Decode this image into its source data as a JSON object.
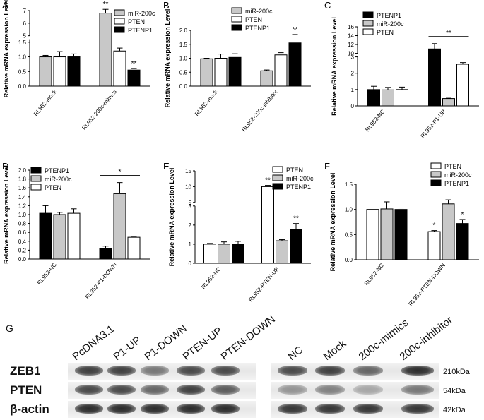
{
  "colors": {
    "black": "#000000",
    "gray": "#c8c8c8",
    "white": "#ffffff"
  },
  "chart_data": [
    {
      "panel": "A",
      "type": "bar",
      "ylabel": "Relative mRNA expression Level",
      "categories": [
        "RL952-mock",
        "RL952-200c-mimics"
      ],
      "series": [
        {
          "name": "miR-200c",
          "color": "#c8c8c8",
          "values": [
            1.0,
            6.8
          ],
          "errors": [
            0.05,
            0.3
          ]
        },
        {
          "name": "PTEN",
          "color": "#ffffff",
          "values": [
            1.0,
            1.2
          ],
          "errors": [
            0.18,
            0.1
          ]
        },
        {
          "name": "PTENP1",
          "color": "#000000",
          "values": [
            1.0,
            0.55
          ],
          "errors": [
            0.1,
            0.05
          ]
        }
      ],
      "annotations": [
        {
          "group": 1,
          "series": 0,
          "text": "**"
        },
        {
          "group": 1,
          "series": 2,
          "text": "**"
        }
      ],
      "legend": "top-right",
      "axis_break": {
        "from": 1.6,
        "to": 5,
        "upper_max": 7
      },
      "lower_ticks": [
        "0.0",
        "0.5",
        "1.0",
        "1.5"
      ],
      "upper_ticks": [
        "5",
        "6",
        "7"
      ]
    },
    {
      "panel": "B",
      "type": "bar",
      "ylabel": "Relative mRNA expression Level",
      "categories": [
        "RL952-mock",
        "RL952-200c-inhibitor"
      ],
      "series": [
        {
          "name": "miR-200c",
          "color": "#c8c8c8",
          "values": [
            0.98,
            0.55
          ],
          "errors": [
            0.02,
            0.03
          ]
        },
        {
          "name": "PTEN",
          "color": "#ffffff",
          "values": [
            1.0,
            1.12
          ],
          "errors": [
            0.15,
            0.08
          ]
        },
        {
          "name": "PTENP1",
          "color": "#000000",
          "values": [
            1.03,
            1.55
          ],
          "errors": [
            0.13,
            0.3
          ]
        }
      ],
      "annotations": [
        {
          "group": 1,
          "series": 2,
          "text": "**"
        }
      ],
      "legend": "top-right",
      "ylim": [
        0,
        2.0
      ],
      "ticks": [
        "0.0",
        "0.5",
        "1.0",
        "1.5",
        "2.0"
      ]
    },
    {
      "panel": "C",
      "type": "bar",
      "ylabel": "Relative mRNA expression Level",
      "categories": [
        "RL952-NC",
        "RL952-P1-UP"
      ],
      "series": [
        {
          "name": "PTENP1",
          "color": "#000000",
          "values": [
            1.0,
            11.0
          ],
          "errors": [
            0.2,
            1.2
          ]
        },
        {
          "name": "miR-200c",
          "color": "#c8c8c8",
          "values": [
            0.98,
            0.45
          ],
          "errors": [
            0.15,
            0.02
          ]
        },
        {
          "name": "PTEN",
          "color": "#ffffff",
          "values": [
            1.0,
            2.55
          ],
          "errors": [
            0.15,
            0.1
          ]
        }
      ],
      "annotations": [
        {
          "bracket": [
            0,
            2
          ],
          "group": 1,
          "text": "**"
        }
      ],
      "legend": "top-left",
      "axis_break": {
        "from": 3,
        "to": 10,
        "upper_max": 16
      },
      "lower_ticks": [
        "0",
        "1",
        "2",
        "3"
      ],
      "upper_ticks": [
        "10",
        "12",
        "14",
        "16"
      ]
    },
    {
      "panel": "D",
      "type": "bar",
      "ylabel": "Relative mRNA expression Level",
      "categories": [
        "RL952-NC",
        "RL952-P1-DOWN"
      ],
      "series": [
        {
          "name": "PTENP1",
          "color": "#000000",
          "values": [
            1.03,
            0.24
          ],
          "errors": [
            0.17,
            0.05
          ]
        },
        {
          "name": "miR-200c",
          "color": "#c8c8c8",
          "values": [
            1.0,
            1.47
          ],
          "errors": [
            0.05,
            0.25
          ]
        },
        {
          "name": "PTEN",
          "color": "#ffffff",
          "values": [
            1.03,
            0.49
          ],
          "errors": [
            0.1,
            0.02
          ]
        }
      ],
      "annotations": [
        {
          "bracket": [
            0,
            2
          ],
          "group": 1,
          "text": "*"
        }
      ],
      "legend": "top-left",
      "ylim": [
        0,
        2.0
      ],
      "ticks": [
        "0.0",
        "0.2",
        "0.4",
        "0.6",
        "0.8",
        "1.0",
        "1.2",
        "1.4",
        "1.6",
        "1.8",
        "2.0"
      ]
    },
    {
      "panel": "E",
      "type": "bar",
      "ylabel": "Relative mRNA expression Level",
      "categories": [
        "RL952-NC",
        "RL952-PTEN-UP"
      ],
      "series": [
        {
          "name": "PTEN",
          "color": "#ffffff",
          "values": [
            1.0,
            10.0
          ],
          "errors": [
            0.04,
            0.4
          ]
        },
        {
          "name": "miR-200c",
          "color": "#c8c8c8",
          "values": [
            1.0,
            1.18
          ],
          "errors": [
            0.12,
            0.06
          ]
        },
        {
          "name": "PTENP1",
          "color": "#000000",
          "values": [
            1.0,
            1.78
          ],
          "errors": [
            0.15,
            0.3
          ]
        }
      ],
      "annotations": [
        {
          "group": 1,
          "series": 0,
          "text": "**"
        },
        {
          "group": 1,
          "series": 2,
          "text": "**"
        }
      ],
      "legend": "top-right",
      "axis_break": {
        "from": 3,
        "to": 5,
        "upper_max": 15
      },
      "lower_ticks": [
        "0",
        "1",
        "2",
        "3"
      ],
      "upper_ticks": [
        "5",
        "10",
        "15"
      ]
    },
    {
      "panel": "F",
      "type": "bar",
      "ylabel": "Relative mRNA expression Level",
      "categories": [
        "RL952-NC",
        "RL952-PTEN-DOWN"
      ],
      "series": [
        {
          "name": "PTEN",
          "color": "#ffffff",
          "values": [
            1.0,
            0.56
          ],
          "errors": [
            0.0,
            0.02
          ]
        },
        {
          "name": "miR-200c",
          "color": "#c8c8c8",
          "values": [
            1.01,
            1.11
          ],
          "errors": [
            0.14,
            0.08
          ]
        },
        {
          "name": "PTENP1",
          "color": "#000000",
          "values": [
            1.0,
            0.72
          ],
          "errors": [
            0.03,
            0.08
          ]
        }
      ],
      "annotations": [
        {
          "group": 1,
          "series": 0,
          "text": "*"
        },
        {
          "group": 1,
          "series": 2,
          "text": "*"
        }
      ],
      "legend": "top-right",
      "ylim": [
        0,
        1.5
      ],
      "ticks": [
        "0.0",
        "0.5",
        "1.0",
        "1.5"
      ]
    }
  ],
  "blot": {
    "panel": "G",
    "lanes_left": [
      "PcDNA3.1",
      "P1-UP",
      "P1-DOWN",
      "PTEN-UP",
      "PTEN-DOWN"
    ],
    "lanes_right": [
      "NC",
      "Mock",
      "200c-mimics",
      "200c-inhibitor"
    ],
    "rows": [
      {
        "label": "ZEB1",
        "size": "210kDa",
        "intensity_left": [
          0.9,
          0.9,
          0.6,
          0.85,
          0.85
        ],
        "intensity_right": [
          0.85,
          0.9,
          0.7,
          1.0
        ]
      },
      {
        "label": "PTEN",
        "size": "54kDa",
        "intensity_left": [
          0.85,
          0.85,
          0.7,
          0.9,
          0.75
        ],
        "intensity_right": [
          0.45,
          0.55,
          0.35,
          0.6
        ]
      },
      {
        "label": "β-actin",
        "size": "42kDa",
        "intensity_left": [
          1.0,
          1.0,
          1.0,
          1.0,
          1.0
        ],
        "intensity_right": [
          0.95,
          0.95,
          0.95,
          0.95
        ]
      }
    ]
  }
}
